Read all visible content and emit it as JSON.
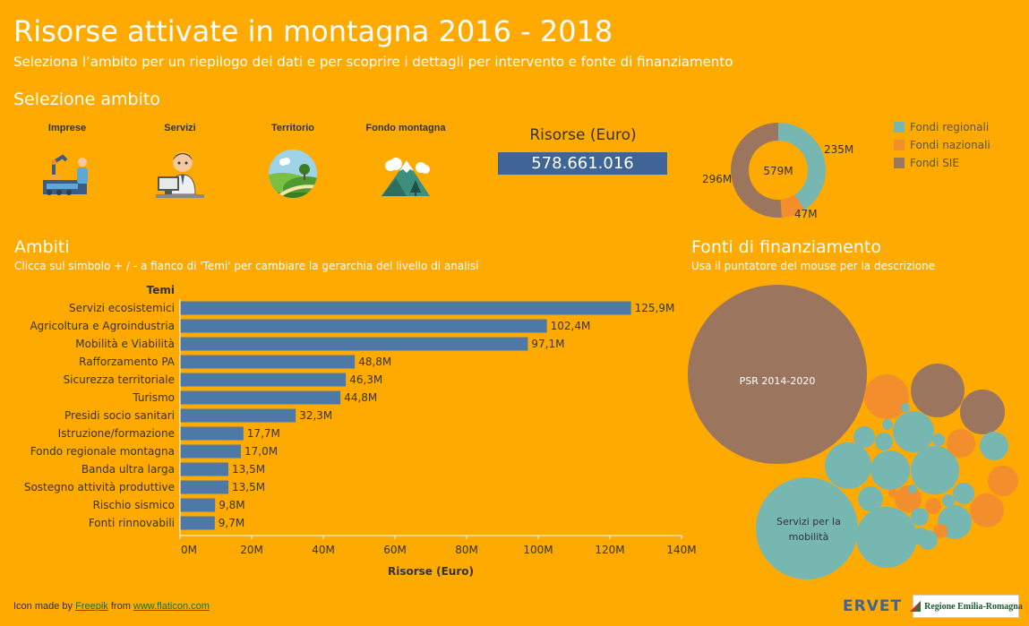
{
  "header": {
    "title": "Risorse attivate in montagna 2016 - 2018",
    "subtitle": "Seleziona l’ambito per un riepilogo dei dati e per scoprire i dettagli per intervento e fonte di finanziamento"
  },
  "selection": {
    "title": "Selezione ambito",
    "items": [
      {
        "label": "Imprese",
        "icon": "factory-workers-icon"
      },
      {
        "label": "Servizi",
        "icon": "office-worker-icon"
      },
      {
        "label": "Territorio",
        "icon": "landscape-icon"
      },
      {
        "label": "Fondo montagna",
        "icon": "mountain-icon"
      }
    ]
  },
  "kpi": {
    "label": "Risorse (Euro)",
    "value": "578.661.016"
  },
  "donut": {
    "center_label": "579M",
    "segments": [
      {
        "name": "Fondi regionali",
        "value": 235,
        "label": "235M",
        "color": "#76B7B2"
      },
      {
        "name": "Fondi nazionali",
        "value": 47,
        "label": "47M",
        "color": "#F28E2B"
      },
      {
        "name": "Fondi SIE",
        "value": 296,
        "label": "296M",
        "color": "#9C755F"
      }
    ]
  },
  "ambiti": {
    "title": "Ambiti",
    "subtitle": "Clicca sul simbolo + / - a fianco di 'Temi' per cambiare la gerarchia del livello di analisi"
  },
  "fonti": {
    "title": "Fonti di finanziamento",
    "subtitle": "Usa il puntatore del mouse per la descrizione",
    "bubble_labels": [
      "PSR 2014-2020",
      "Servizi per la mobilità"
    ]
  },
  "chart_data": {
    "type": "bar",
    "orientation": "horizontal",
    "category_header": "Temi",
    "xlabel": "Risorse (Euro)",
    "xlim": [
      0,
      140
    ],
    "x_ticks": [
      "0M",
      "20M",
      "40M",
      "60M",
      "80M",
      "100M",
      "120M",
      "140M"
    ],
    "bar_color": "#4E79A7",
    "categories": [
      "Servizi ecosistemici",
      "Agricoltura e Agroindustria",
      "Mobilità e Viabilità",
      "Rafforzamento PA",
      "Sicurezza territoriale",
      "Turismo",
      "Presidi socio sanitari",
      "Istruzione/formazione",
      "Fondo regionale montagna",
      "Banda ultra larga",
      "Sostegno attività produttive",
      "Rischio sismico",
      "Fonti rinnovabili"
    ],
    "values": [
      125.9,
      102.4,
      97.1,
      48.8,
      46.3,
      44.8,
      32.3,
      17.7,
      17.0,
      13.5,
      13.5,
      9.8,
      9.7
    ],
    "value_labels": [
      "125,9M",
      "102,4M",
      "97,1M",
      "48,8M",
      "46,3M",
      "44,8M",
      "32,3M",
      "17,7M",
      "17,0M",
      "13,5M",
      "13,5M",
      "9,8M",
      "9,7M"
    ]
  },
  "footer": {
    "prefix": "Icon made by",
    "author": "Freepik",
    "middle": "from",
    "site": "www.flaticon.com"
  },
  "logos": {
    "ervet": "ERVET",
    "regione": "Regione Emilia-Romagna"
  }
}
